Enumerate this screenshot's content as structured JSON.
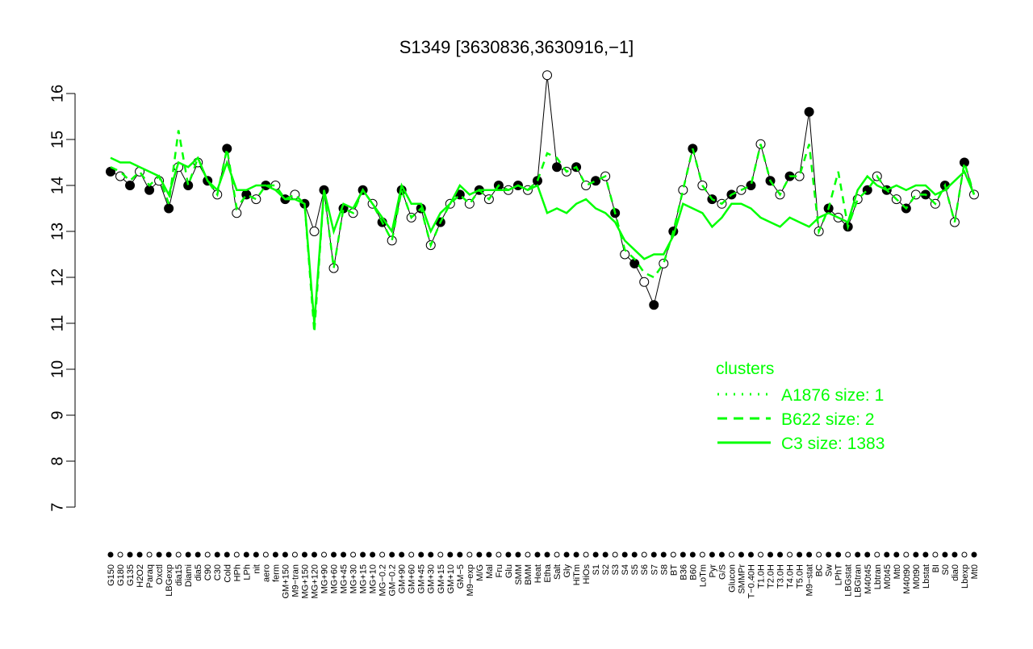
{
  "chart_data": {
    "type": "line",
    "title": "S1349 [3630836,3630916,−1]",
    "xlabel": "",
    "ylabel": "",
    "ylim": [
      7,
      16
    ],
    "yticks": [
      7,
      8,
      9,
      10,
      11,
      12,
      13,
      14,
      15,
      16
    ],
    "grid": false,
    "x_tick_labels": [
      "G150",
      "G180",
      "G135",
      "H2O2",
      "Paraq",
      "Oxctl",
      "LBGexp",
      "dia15",
      "Diami",
      "dia5",
      "C90",
      "C30",
      "Cold",
      "HPh",
      "LPh",
      "nit",
      "aero",
      "ferm",
      "GM+150",
      "M9−tran",
      "MG+150",
      "MG+120",
      "MG+90",
      "MG+60",
      "MG+45",
      "MG+30",
      "MG+15",
      "MG+10",
      "MG−0.2",
      "GM−0.2",
      "GM+90",
      "GM+60",
      "GM+45",
      "GM+30",
      "GM+15",
      "GM+10",
      "GM−5",
      "M9−exp",
      "M/G",
      "Mal",
      "Fru",
      "Glu",
      "SMM",
      "BMM",
      "Heat",
      "Etha",
      "Salt",
      "Gly",
      "HiTm",
      "HiOs",
      "S1",
      "S2",
      "S3",
      "S4",
      "S5",
      "S6",
      "S7",
      "S8",
      "BT",
      "B36",
      "B60",
      "LoTm",
      "Pyr",
      "G/S",
      "Glucon",
      "SMMPr",
      "T−0.40H",
      "T1.0H",
      "T2.0H",
      "T3.0H",
      "T4.0H",
      "T5.0H",
      "M9−stat",
      "BC",
      "Sw",
      "LPhT",
      "LBGstat",
      "LBGtran",
      "M40t45",
      "Lbtran",
      "M0t45",
      "Mt0",
      "M40t90",
      "M0t90",
      "Lbstat",
      "BI",
      "S0",
      "dia0",
      "Lbexp",
      "Mt0"
    ],
    "legend": {
      "title": "clusters",
      "placement": "right",
      "entries": [
        {
          "name": "A1876 size: 1",
          "style": "dotted"
        },
        {
          "name": "B622 size: 2",
          "style": "dashed"
        },
        {
          "name": "C3 size: 1383",
          "style": "solid"
        }
      ]
    },
    "series": [
      {
        "name": "S1349",
        "color": "#000000",
        "values": [
          14.3,
          14.2,
          14.0,
          14.3,
          13.9,
          14.1,
          13.5,
          14.4,
          14.0,
          14.5,
          14.1,
          13.8,
          14.8,
          13.4,
          13.8,
          13.7,
          14.0,
          14.0,
          13.7,
          13.8,
          13.6,
          13.0,
          13.9,
          12.2,
          13.5,
          13.4,
          13.9,
          13.6,
          13.2,
          12.8,
          13.9,
          13.3,
          13.5,
          12.7,
          13.2,
          13.6,
          13.8,
          13.6,
          13.9,
          13.7,
          14.0,
          13.9,
          14.0,
          13.9,
          14.1,
          16.4,
          14.4,
          14.3,
          14.4,
          14.0,
          14.1,
          14.2,
          13.4,
          12.5,
          12.3,
          11.9,
          11.4,
          12.3,
          13.0,
          13.9,
          14.8,
          14.0,
          13.7,
          13.6,
          13.8,
          13.9,
          14.0,
          14.9,
          14.1,
          13.8,
          14.2,
          14.2,
          15.6,
          13.0,
          13.5,
          13.3,
          13.1,
          13.7,
          13.9,
          14.2,
          13.9,
          13.7,
          13.5,
          13.8,
          13.8,
          13.6,
          14.0,
          13.2,
          14.5,
          13.8
        ]
      },
      {
        "name": "C3 size: 1383",
        "color": "#00ff00",
        "values": [
          14.6,
          14.5,
          14.5,
          14.4,
          14.3,
          14.2,
          13.8,
          14.5,
          14.4,
          14.6,
          14.1,
          13.9,
          14.5,
          13.9,
          13.9,
          14.0,
          14.0,
          13.9,
          13.7,
          13.7,
          13.6,
          11.0,
          13.9,
          13.0,
          13.6,
          13.5,
          13.9,
          13.6,
          13.3,
          13.0,
          14.0,
          13.6,
          13.6,
          13.0,
          13.4,
          13.6,
          14.0,
          13.8,
          13.9,
          13.9,
          13.9,
          13.9,
          14.0,
          13.9,
          14.0,
          13.4,
          13.5,
          13.4,
          13.6,
          13.7,
          13.5,
          13.4,
          13.2,
          12.8,
          12.6,
          12.4,
          12.5,
          12.5,
          12.9,
          13.6,
          13.5,
          13.4,
          13.1,
          13.3,
          13.6,
          13.6,
          13.5,
          13.3,
          13.2,
          13.1,
          13.3,
          13.2,
          13.1,
          13.3,
          13.4,
          13.3,
          13.2,
          13.9,
          14.2,
          14.0,
          13.9,
          14.0,
          13.9,
          14.0,
          14.0,
          13.8,
          13.9,
          14.1,
          14.3,
          13.8
        ]
      },
      {
        "name": "B622 size: 2",
        "color": "#00ff00",
        "values": [
          14.4,
          14.3,
          14.1,
          14.3,
          14.0,
          14.2,
          13.6,
          15.2,
          14.0,
          14.6,
          14.1,
          13.8,
          14.8,
          13.5,
          13.8,
          13.7,
          14.0,
          14.0,
          13.7,
          13.8,
          13.6,
          10.8,
          13.9,
          12.2,
          13.5,
          13.4,
          13.9,
          13.6,
          13.2,
          12.8,
          13.9,
          13.3,
          13.5,
          12.7,
          13.2,
          13.6,
          13.8,
          13.6,
          13.9,
          13.7,
          14.0,
          13.9,
          14.0,
          13.9,
          14.1,
          14.7,
          14.6,
          14.3,
          14.4,
          14.0,
          14.1,
          14.2,
          13.4,
          12.6,
          12.4,
          12.1,
          12.0,
          12.3,
          13.0,
          13.9,
          14.8,
          14.0,
          13.7,
          13.6,
          13.8,
          13.9,
          14.0,
          14.9,
          14.1,
          13.8,
          14.2,
          14.2,
          14.9,
          13.0,
          13.5,
          14.3,
          13.1,
          13.7,
          13.9,
          14.2,
          13.9,
          13.7,
          13.5,
          13.8,
          13.8,
          13.6,
          14.0,
          13.2,
          14.5,
          13.8
        ]
      }
    ]
  }
}
